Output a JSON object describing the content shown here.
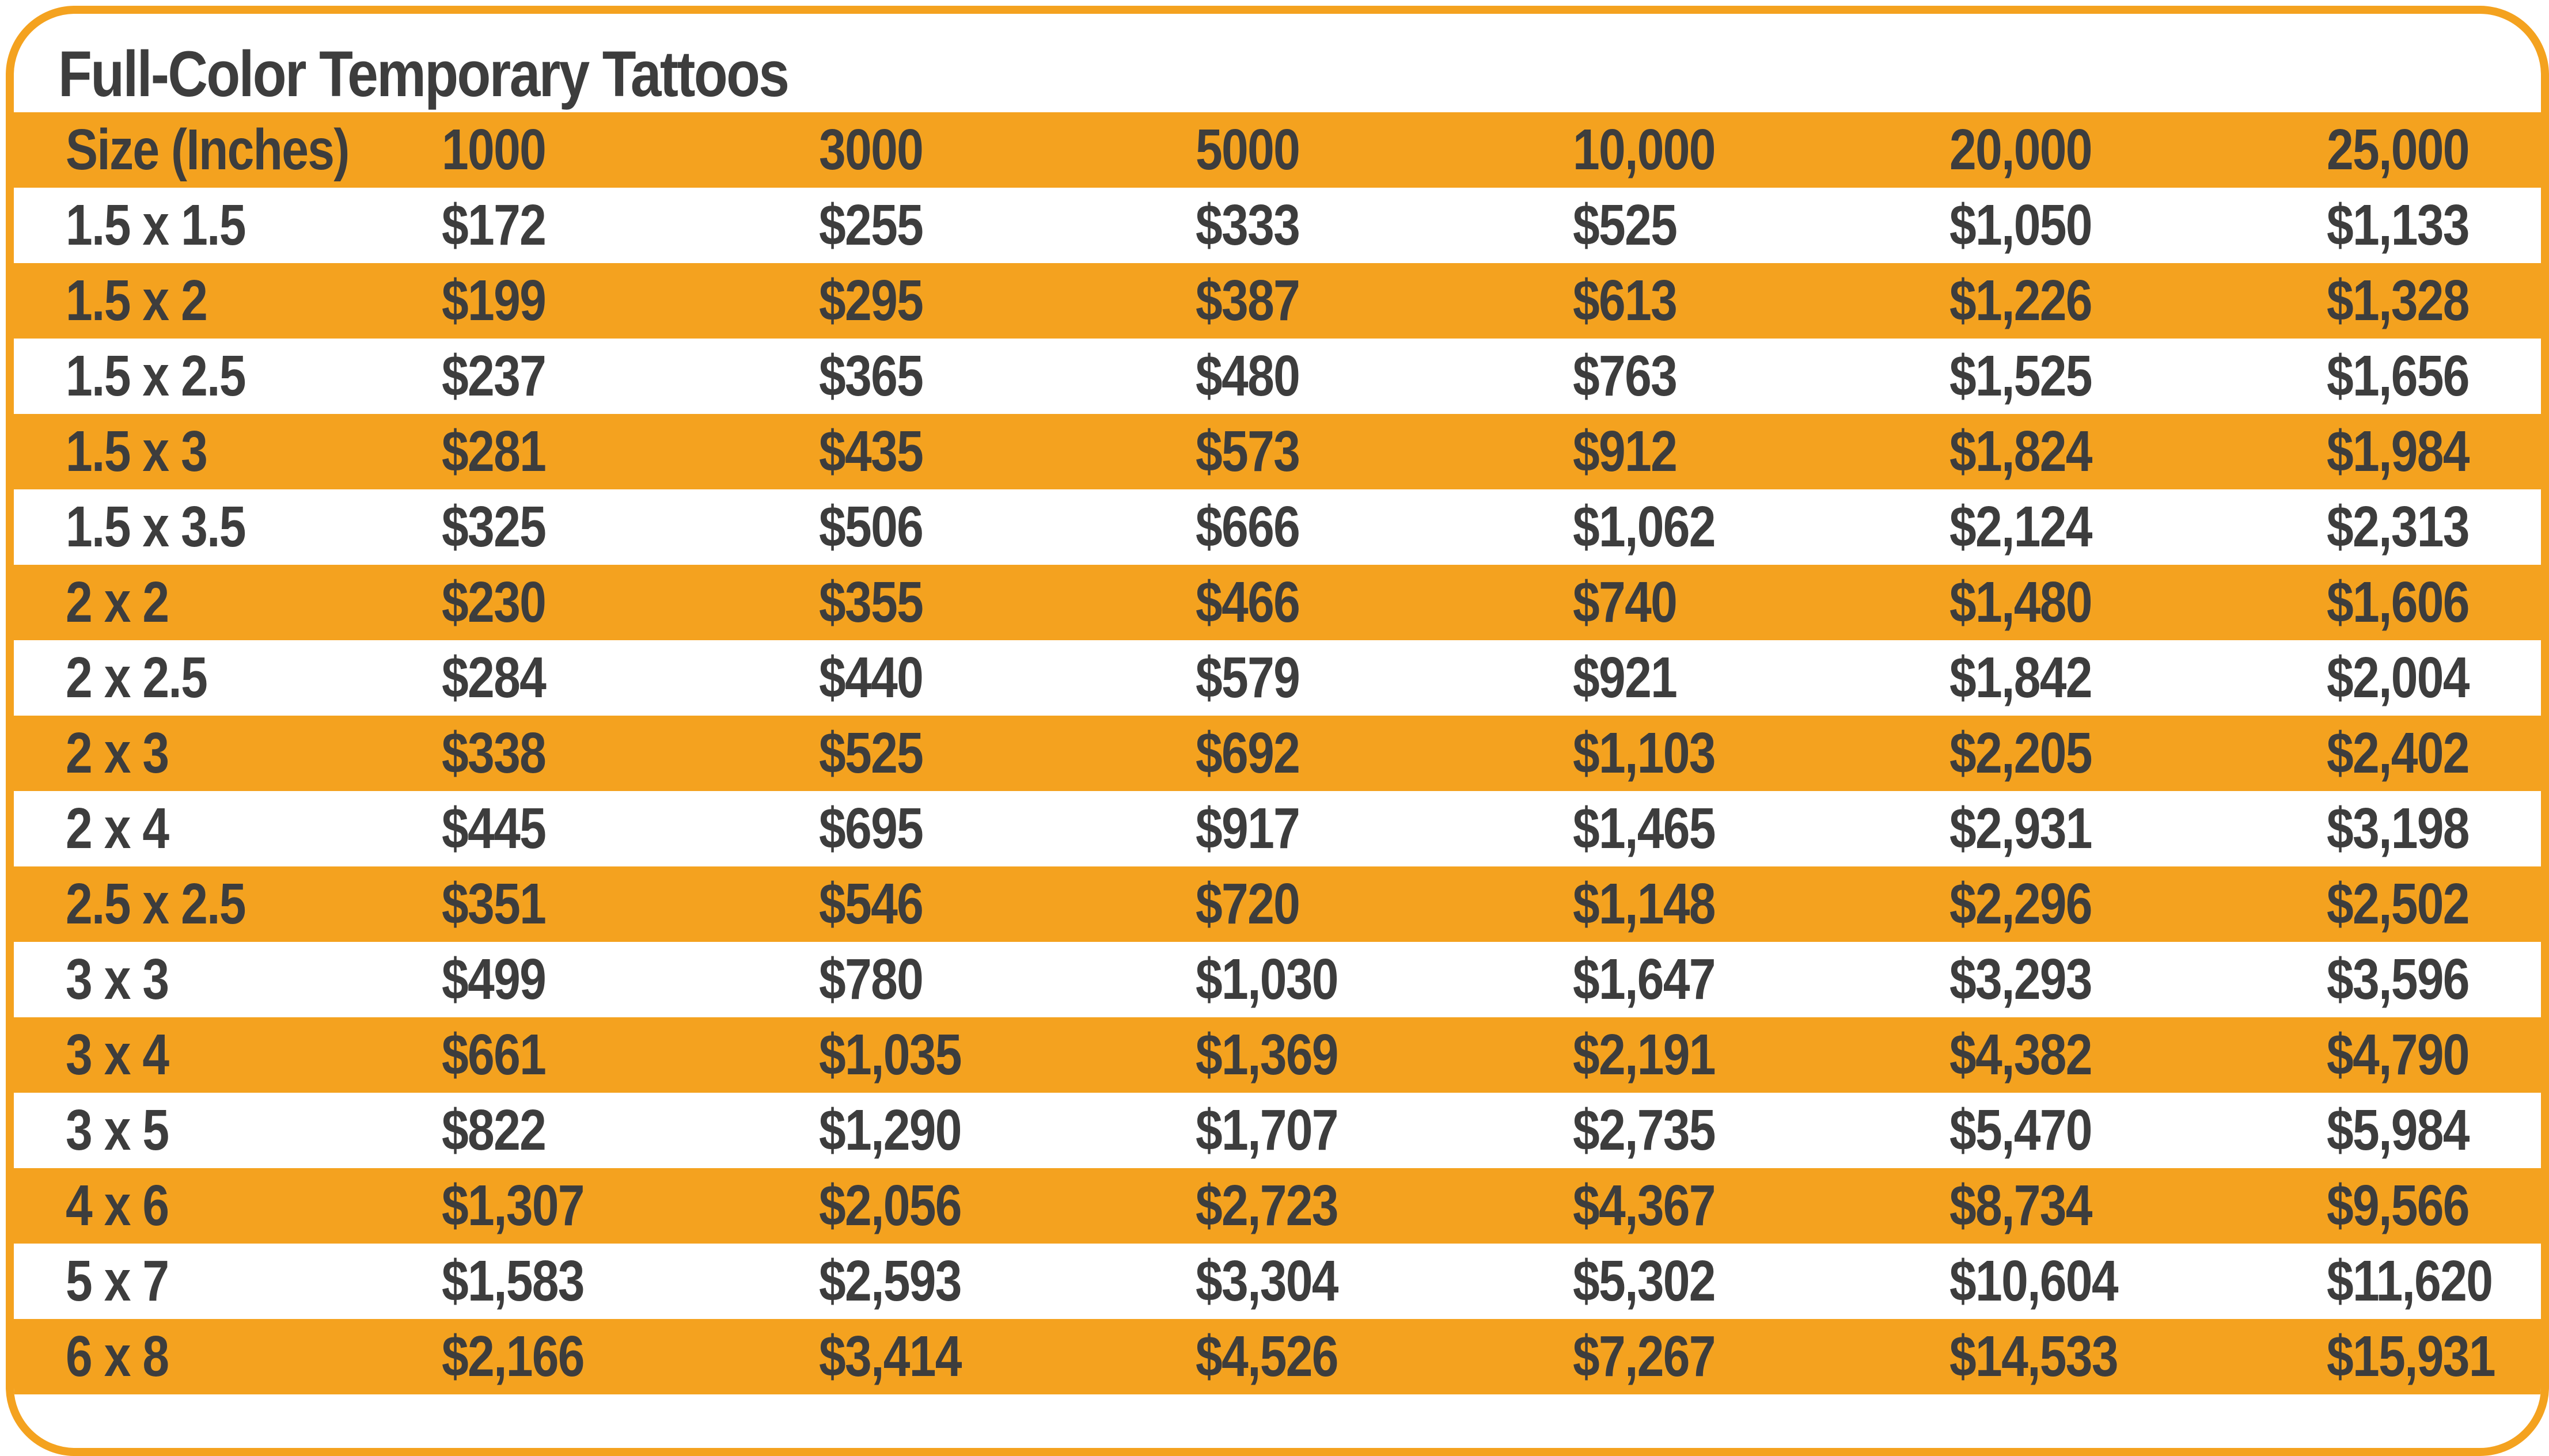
{
  "title": "Full-Color Temporary Tattoos",
  "colors": {
    "accent": "#f4a21f",
    "text": "#3d3d3d",
    "background": "#ffffff"
  },
  "headers": [
    "Size (Inches)",
    "1000",
    "3000",
    "5000",
    "10,000",
    "20,000",
    "25,000"
  ],
  "rows": [
    [
      "1.5 x 1.5",
      "$172",
      "$255",
      "$333",
      "$525",
      "$1,050",
      "$1,133"
    ],
    [
      "1.5 x 2",
      "$199",
      "$295",
      "$387",
      "$613",
      "$1,226",
      "$1,328"
    ],
    [
      "1.5 x 2.5",
      "$237",
      "$365",
      "$480",
      "$763",
      "$1,525",
      "$1,656"
    ],
    [
      "1.5 x 3",
      "$281",
      "$435",
      "$573",
      "$912",
      "$1,824",
      "$1,984"
    ],
    [
      "1.5 x 3.5",
      "$325",
      "$506",
      "$666",
      "$1,062",
      "$2,124",
      "$2,313"
    ],
    [
      "2 x 2",
      "$230",
      "$355",
      "$466",
      "$740",
      "$1,480",
      "$1,606"
    ],
    [
      "2 x 2.5",
      "$284",
      "$440",
      "$579",
      "$921",
      "$1,842",
      "$2,004"
    ],
    [
      "2 x 3",
      "$338",
      "$525",
      "$692",
      "$1,103",
      "$2,205",
      "$2,402"
    ],
    [
      "2 x 4",
      "$445",
      "$695",
      "$917",
      "$1,465",
      "$2,931",
      "$3,198"
    ],
    [
      "2.5 x 2.5",
      "$351",
      "$546",
      "$720",
      "$1,148",
      "$2,296",
      "$2,502"
    ],
    [
      "3 x 3",
      "$499",
      "$780",
      "$1,030",
      "$1,647",
      "$3,293",
      "$3,596"
    ],
    [
      "3 x 4",
      "$661",
      "$1,035",
      "$1,369",
      "$2,191",
      "$4,382",
      "$4,790"
    ],
    [
      "3 x 5",
      "$822",
      "$1,290",
      "$1,707",
      "$2,735",
      "$5,470",
      "$5,984"
    ],
    [
      "4 x 6",
      "$1,307",
      "$2,056",
      "$2,723",
      "$4,367",
      "$8,734",
      "$9,566"
    ],
    [
      "5 x 7",
      "$1,583",
      "$2,593",
      "$3,304",
      "$5,302",
      "$10,604",
      "$11,620"
    ],
    [
      "6 x 8",
      "$2,166",
      "$3,414",
      "$4,526",
      "$7,267",
      "$14,533",
      "$15,931"
    ]
  ]
}
